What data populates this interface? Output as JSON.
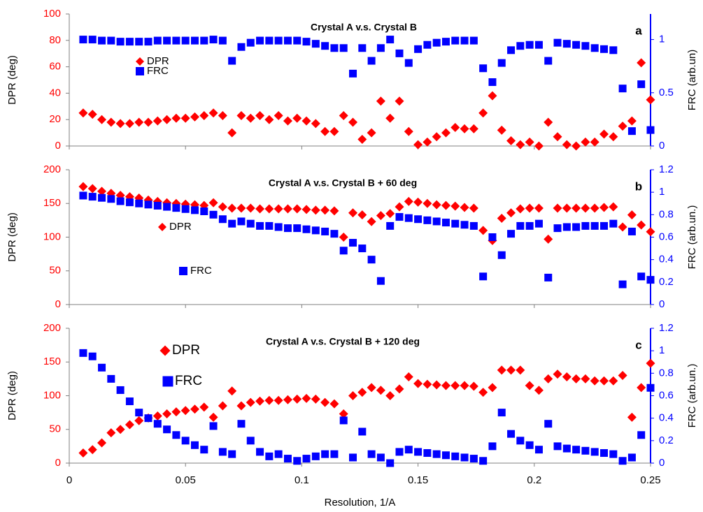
{
  "chart_data": [
    {
      "type": "scatter",
      "title": "Crystal A v.s. Crystal B",
      "annotation": "a",
      "y_label": "DPR (deg)",
      "y2_label": "FRC (arb.un)",
      "xlim": [
        0,
        0.25
      ],
      "xticks": [
        0,
        0.05,
        0.1,
        0.15,
        0.2,
        0.25
      ],
      "ylim": [
        0,
        100
      ],
      "yticks": [
        0,
        20,
        40,
        60,
        80,
        100
      ],
      "y2lim": [
        0,
        1.24
      ],
      "y2ticks": [
        0,
        0.5,
        1
      ],
      "x": [
        0.006,
        0.01,
        0.014,
        0.018,
        0.022,
        0.026,
        0.03,
        0.034,
        0.038,
        0.042,
        0.046,
        0.05,
        0.054,
        0.058,
        0.062,
        0.066,
        0.07,
        0.074,
        0.078,
        0.082,
        0.086,
        0.09,
        0.094,
        0.098,
        0.102,
        0.106,
        0.11,
        0.114,
        0.118,
        0.122,
        0.126,
        0.13,
        0.134,
        0.138,
        0.142,
        0.146,
        0.15,
        0.154,
        0.158,
        0.162,
        0.166,
        0.17,
        0.174,
        0.178,
        0.182,
        0.186,
        0.19,
        0.194,
        0.198,
        0.202,
        0.206,
        0.21,
        0.214,
        0.218,
        0.222,
        0.226,
        0.23,
        0.234,
        0.238,
        0.242,
        0.246,
        0.25
      ],
      "series": [
        {
          "name": "DPR",
          "color": "#ff0000",
          "marker": "diamond",
          "values": [
            25,
            24,
            20,
            18,
            17,
            17,
            18,
            18,
            19,
            20,
            21,
            21,
            22,
            23,
            25,
            23,
            10,
            23,
            21,
            23,
            20,
            23,
            19,
            21,
            19,
            17,
            11,
            11,
            23,
            18,
            5,
            10,
            34,
            21,
            34,
            11,
            1,
            3,
            7,
            10,
            14,
            13,
            13,
            25,
            38,
            12,
            4,
            1,
            3,
            0,
            18,
            7,
            1,
            0,
            3,
            3,
            9,
            7,
            15,
            19,
            63,
            35
          ]
        },
        {
          "name": "FRC",
          "color": "#0000ff",
          "marker": "square",
          "axis": "y2",
          "values": [
            1.0,
            1.0,
            0.99,
            0.99,
            0.98,
            0.98,
            0.98,
            0.98,
            0.99,
            0.99,
            0.99,
            0.99,
            0.99,
            0.99,
            1.0,
            0.99,
            0.8,
            0.93,
            0.97,
            0.99,
            0.99,
            0.99,
            0.99,
            0.99,
            0.98,
            0.96,
            0.94,
            0.92,
            0.92,
            0.68,
            0.92,
            0.8,
            0.92,
            1.0,
            0.87,
            0.78,
            0.91,
            0.95,
            0.97,
            0.98,
            0.99,
            0.99,
            0.99,
            0.73,
            0.6,
            0.78,
            0.9,
            0.94,
            0.95,
            0.95,
            0.8,
            0.97,
            0.96,
            0.95,
            0.94,
            0.92,
            0.91,
            0.9,
            0.54,
            0.14,
            0.58,
            0.15
          ]
        }
      ]
    },
    {
      "type": "scatter",
      "title": "Crystal A v.s. Crystal B + 60 deg",
      "annotation": "b",
      "y_label": "DPR (deg)",
      "y2_label": "FRC (arb.un.)",
      "xlim": [
        0,
        0.25
      ],
      "xticks": [
        0,
        0.05,
        0.1,
        0.15,
        0.2,
        0.25
      ],
      "ylim": [
        0,
        200
      ],
      "yticks": [
        0,
        50,
        100,
        150,
        200
      ],
      "y2lim": [
        0,
        1.2
      ],
      "y2ticks": [
        0,
        0.2,
        0.4,
        0.6,
        0.8,
        1,
        1.2
      ],
      "x": [
        0.006,
        0.01,
        0.014,
        0.018,
        0.022,
        0.026,
        0.03,
        0.034,
        0.038,
        0.042,
        0.046,
        0.05,
        0.054,
        0.058,
        0.062,
        0.066,
        0.07,
        0.074,
        0.078,
        0.082,
        0.086,
        0.09,
        0.094,
        0.098,
        0.102,
        0.106,
        0.11,
        0.114,
        0.118,
        0.122,
        0.126,
        0.13,
        0.134,
        0.138,
        0.142,
        0.146,
        0.15,
        0.154,
        0.158,
        0.162,
        0.166,
        0.17,
        0.174,
        0.178,
        0.182,
        0.186,
        0.19,
        0.194,
        0.198,
        0.202,
        0.206,
        0.21,
        0.214,
        0.218,
        0.222,
        0.226,
        0.23,
        0.234,
        0.238,
        0.242,
        0.246,
        0.25
      ],
      "series": [
        {
          "name": "DPR",
          "color": "#ff0000",
          "marker": "diamond",
          "values": [
            175,
            172,
            168,
            165,
            162,
            160,
            158,
            155,
            153,
            151,
            150,
            149,
            148,
            147,
            151,
            145,
            143,
            143,
            143,
            142,
            142,
            142,
            142,
            142,
            141,
            140,
            140,
            139,
            100,
            136,
            133,
            123,
            132,
            135,
            145,
            153,
            152,
            150,
            148,
            147,
            146,
            144,
            143,
            110,
            95,
            128,
            136,
            142,
            143,
            143,
            97,
            143,
            143,
            143,
            143,
            143,
            144,
            145,
            115,
            133,
            118,
            108
          ]
        },
        {
          "name": "FRC",
          "color": "#0000ff",
          "marker": "square",
          "axis": "y2",
          "values": [
            0.97,
            0.96,
            0.95,
            0.94,
            0.92,
            0.91,
            0.9,
            0.89,
            0.88,
            0.87,
            0.86,
            0.85,
            0.84,
            0.83,
            0.8,
            0.76,
            0.72,
            0.74,
            0.72,
            0.7,
            0.7,
            0.69,
            0.68,
            0.68,
            0.67,
            0.66,
            0.65,
            0.63,
            0.48,
            0.55,
            0.5,
            0.4,
            0.21,
            0.7,
            0.78,
            0.77,
            0.76,
            0.75,
            0.74,
            0.73,
            0.72,
            0.71,
            0.7,
            0.25,
            0.6,
            0.44,
            0.63,
            0.7,
            0.7,
            0.72,
            0.24,
            0.68,
            0.69,
            0.69,
            0.7,
            0.7,
            0.7,
            0.72,
            0.18,
            0.65,
            0.25,
            0.22
          ]
        }
      ]
    },
    {
      "type": "scatter",
      "title": "Crystal A v.s. Crystal B + 120 deg",
      "annotation": "c",
      "y_label": "DPR (deg)",
      "y2_label": "FRC (arb.un.)",
      "x_label": "Resolution, 1/A",
      "xlim": [
        0,
        0.25
      ],
      "xticks": [
        0,
        0.05,
        0.1,
        0.15,
        0.2,
        0.25
      ],
      "ylim": [
        0,
        200
      ],
      "yticks": [
        0,
        50,
        100,
        150,
        200
      ],
      "y2lim": [
        0,
        1.2
      ],
      "y2ticks": [
        0,
        0.2,
        0.4,
        0.6,
        0.8,
        1,
        1.2
      ],
      "x": [
        0.006,
        0.01,
        0.014,
        0.018,
        0.022,
        0.026,
        0.03,
        0.034,
        0.038,
        0.042,
        0.046,
        0.05,
        0.054,
        0.058,
        0.062,
        0.066,
        0.07,
        0.074,
        0.078,
        0.082,
        0.086,
        0.09,
        0.094,
        0.098,
        0.102,
        0.106,
        0.11,
        0.114,
        0.118,
        0.122,
        0.126,
        0.13,
        0.134,
        0.138,
        0.142,
        0.146,
        0.15,
        0.154,
        0.158,
        0.162,
        0.166,
        0.17,
        0.174,
        0.178,
        0.182,
        0.186,
        0.19,
        0.194,
        0.198,
        0.202,
        0.206,
        0.21,
        0.214,
        0.218,
        0.222,
        0.226,
        0.23,
        0.234,
        0.238,
        0.242,
        0.246,
        0.25
      ],
      "series": [
        {
          "name": "DPR",
          "color": "#ff0000",
          "marker": "diamond",
          "values": [
            15,
            20,
            30,
            45,
            50,
            57,
            63,
            67,
            70,
            73,
            76,
            78,
            80,
            83,
            68,
            85,
            107,
            85,
            90,
            92,
            93,
            93,
            94,
            95,
            96,
            95,
            90,
            88,
            73,
            100,
            105,
            112,
            108,
            100,
            110,
            128,
            118,
            117,
            116,
            115,
            115,
            115,
            114,
            105,
            112,
            138,
            138,
            138,
            115,
            108,
            125,
            132,
            128,
            125,
            125,
            122,
            122,
            122,
            130,
            68,
            112,
            148
          ]
        },
        {
          "name": "FRC",
          "color": "#0000ff",
          "marker": "square",
          "axis": "y2",
          "values": [
            0.98,
            0.95,
            0.85,
            0.75,
            0.65,
            0.55,
            0.45,
            0.4,
            0.35,
            0.3,
            0.25,
            0.2,
            0.16,
            0.12,
            0.33,
            0.1,
            0.08,
            0.35,
            0.2,
            0.1,
            0.06,
            0.08,
            0.04,
            0.02,
            0.04,
            0.06,
            0.08,
            0.08,
            0.38,
            0.05,
            0.28,
            0.08,
            0.05,
            0,
            0.1,
            0.12,
            0.1,
            0.09,
            0.08,
            0.07,
            0.06,
            0.05,
            0.04,
            0.02,
            0.15,
            0.45,
            0.26,
            0.2,
            0.16,
            0.12,
            0.35,
            0.15,
            0.13,
            0.12,
            0.11,
            0.1,
            0.09,
            0.08,
            0.02,
            0.05,
            0.25,
            0.67
          ]
        }
      ]
    }
  ]
}
